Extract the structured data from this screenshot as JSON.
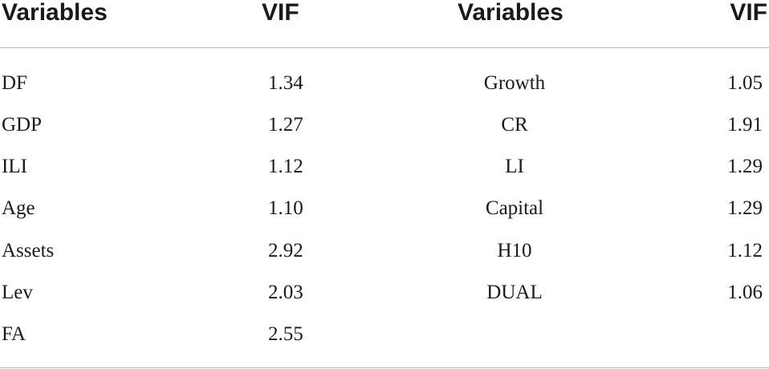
{
  "table": {
    "headers": [
      "Variables",
      "VIF",
      "Variables",
      "VIF"
    ],
    "rows": [
      [
        "DF",
        "1.34",
        "Growth",
        "1.05"
      ],
      [
        "GDP",
        "1.27",
        "CR",
        "1.91"
      ],
      [
        "ILI",
        "1.12",
        "LI",
        "1.29"
      ],
      [
        "Age",
        "1.10",
        "Capital",
        "1.29"
      ],
      [
        "Assets",
        "2.92",
        "H10",
        "1.12"
      ],
      [
        "Lev",
        "2.03",
        "DUAL",
        "1.06"
      ],
      [
        "FA",
        "2.55",
        "",
        ""
      ]
    ]
  }
}
